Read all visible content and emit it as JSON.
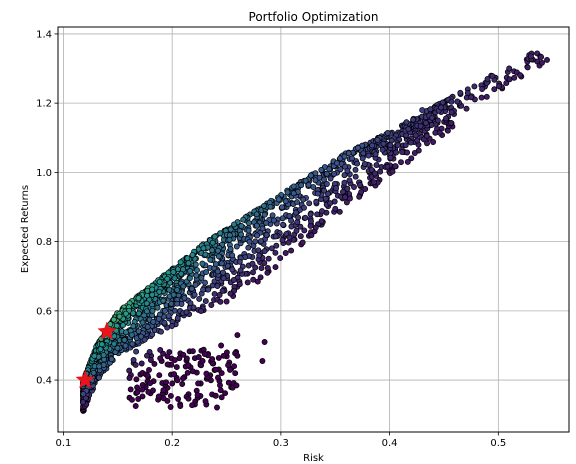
{
  "chart_data": {
    "type": "scatter",
    "title": "Portfolio Optimization",
    "xlabel": "Risk",
    "ylabel": "Expected Returns",
    "xlim": [
      0.095,
      0.565
    ],
    "ylim": [
      0.25,
      1.42
    ],
    "xticks": [
      0.1,
      0.2,
      0.3,
      0.4,
      0.5
    ],
    "xtick_labels": [
      "0.1",
      "0.2",
      "0.3",
      "0.4",
      "0.5"
    ],
    "yticks": [
      0.4,
      0.6,
      0.8,
      1.0,
      1.2,
      1.4
    ],
    "ytick_labels": [
      "0.4",
      "0.6",
      "0.8",
      "1.0",
      "1.2",
      "1.4"
    ],
    "grid": true,
    "colormap": "viridis",
    "color_meaning": "Sharpe ratio (not labeled)",
    "marker_edge_color": "#000000",
    "star_color": "#e8141c",
    "cloud_description": "Random portfolios forming a bullet-shaped cloud with an upper efficient frontier from (0.118, 0.40) to (0.545, 1.37)",
    "frontier_points": [
      {
        "x": 0.118,
        "y": 0.4
      },
      {
        "x": 0.13,
        "y": 0.5
      },
      {
        "x": 0.15,
        "y": 0.6
      },
      {
        "x": 0.19,
        "y": 0.7
      },
      {
        "x": 0.23,
        "y": 0.8
      },
      {
        "x": 0.27,
        "y": 0.88
      },
      {
        "x": 0.31,
        "y": 0.96
      },
      {
        "x": 0.36,
        "y": 1.06
      },
      {
        "x": 0.4,
        "y": 1.12
      },
      {
        "x": 0.45,
        "y": 1.21
      },
      {
        "x": 0.5,
        "y": 1.29
      },
      {
        "x": 0.545,
        "y": 1.37
      }
    ],
    "outlier_points": [
      {
        "x": 0.285,
        "y": 0.51
      },
      {
        "x": 0.283,
        "y": 0.455
      },
      {
        "x": 0.26,
        "y": 0.47
      },
      {
        "x": 0.257,
        "y": 0.44
      },
      {
        "x": 0.26,
        "y": 0.53
      },
      {
        "x": 0.245,
        "y": 0.5
      },
      {
        "x": 0.23,
        "y": 0.475
      },
      {
        "x": 0.2,
        "y": 0.39
      },
      {
        "x": 0.21,
        "y": 0.405
      },
      {
        "x": 0.24,
        "y": 0.43
      },
      {
        "x": 0.43,
        "y": 1.18
      },
      {
        "x": 0.465,
        "y": 1.23
      },
      {
        "x": 0.49,
        "y": 1.27
      },
      {
        "x": 0.51,
        "y": 1.3
      },
      {
        "x": 0.53,
        "y": 1.335
      }
    ],
    "highlighted_points": [
      {
        "name": "max_sharpe",
        "x": 0.14,
        "y": 0.54
      },
      {
        "name": "min_variance",
        "x": 0.12,
        "y": 0.4
      }
    ]
  }
}
